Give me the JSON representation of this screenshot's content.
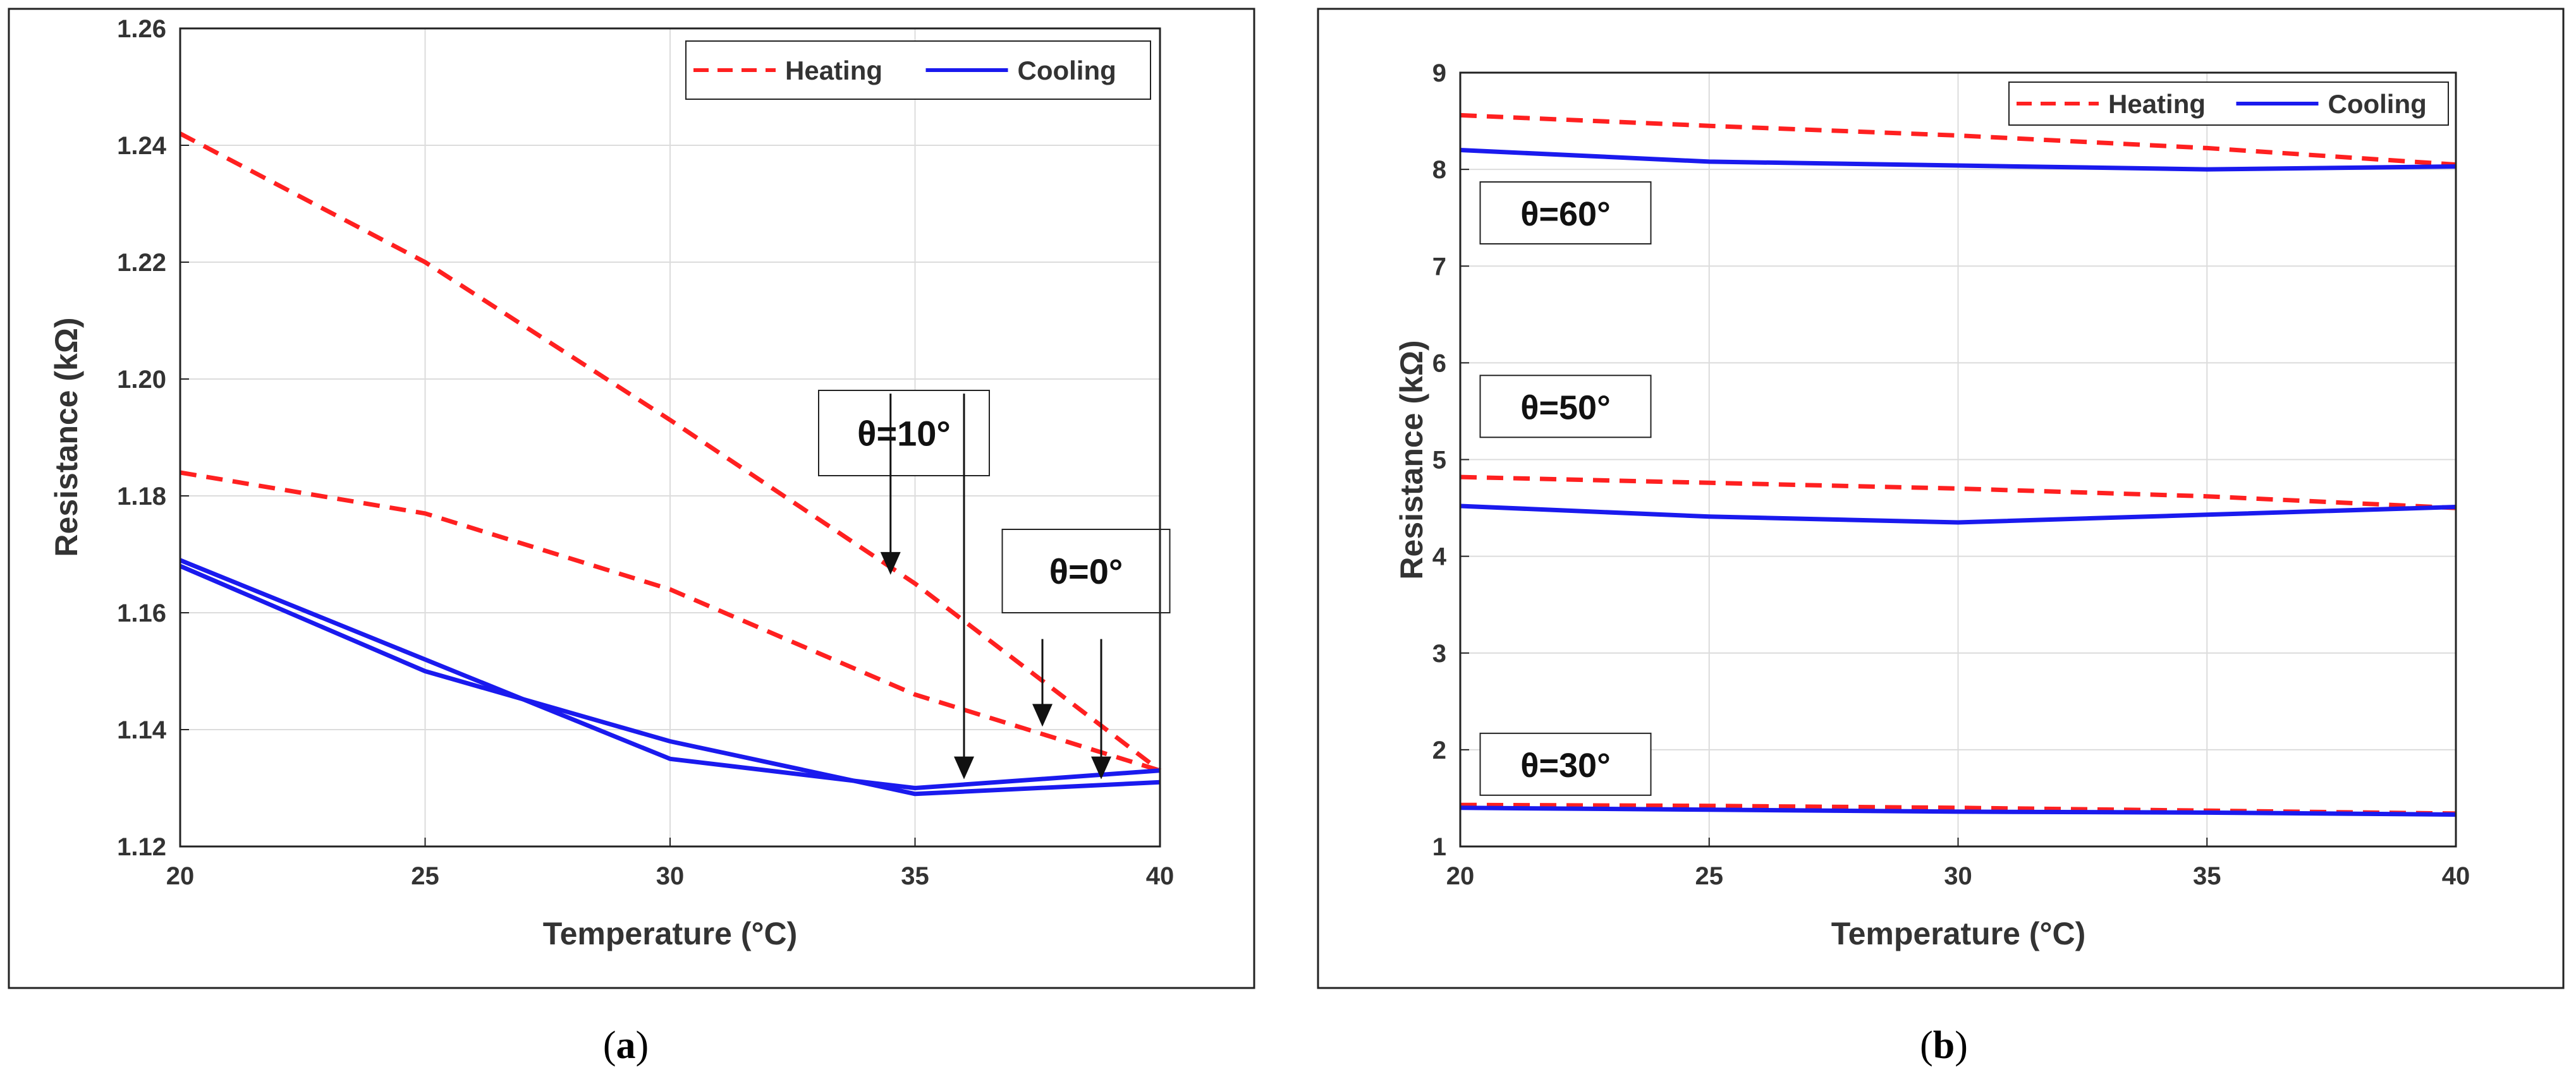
{
  "chart_data": [
    {
      "type": "line",
      "panel_label": "a",
      "xlabel": "Temperature (°C)",
      "ylabel": "Resistance (kΩ)",
      "xlim": [
        20,
        40
      ],
      "ylim": [
        1.12,
        1.26
      ],
      "xticks": [
        20,
        25,
        30,
        35,
        40
      ],
      "xtick_labels": [
        "20",
        "25",
        "30",
        "35",
        "40"
      ],
      "yticks": [
        1.12,
        1.14,
        1.16,
        1.18,
        1.2,
        1.22,
        1.24,
        1.26
      ],
      "ytick_labels": [
        "1.12",
        "1.14",
        "1.16",
        "1.18",
        "1.20",
        "1.22",
        "1.24",
        "1.26"
      ],
      "grid": true,
      "legend": {
        "position": "top-right",
        "entries": [
          "Heating",
          "Cooling"
        ]
      },
      "x": [
        20,
        25,
        30,
        35,
        40
      ],
      "series": [
        {
          "name": "Heating",
          "label": "θ=10°",
          "style": "dashed",
          "color": "#ff2020",
          "values": [
            1.242,
            1.22,
            1.193,
            1.165,
            1.133
          ]
        },
        {
          "name": "Heating",
          "label": "θ=0°",
          "style": "dashed",
          "color": "#ff2020",
          "values": [
            1.184,
            1.177,
            1.164,
            1.146,
            1.133
          ]
        },
        {
          "name": "Cooling",
          "label": "θ=10°",
          "style": "solid",
          "color": "#1a1aee",
          "values": [
            1.169,
            1.152,
            1.135,
            1.13,
            1.133
          ]
        },
        {
          "name": "Cooling",
          "label": "θ=0°",
          "style": "solid",
          "color": "#1a1aee",
          "values": [
            1.168,
            1.15,
            1.138,
            1.129,
            1.131
          ]
        }
      ],
      "annotations": [
        {
          "text": "θ=10°",
          "arrows": [
            {
              "x": 34.5,
              "y_from": 1.1975,
              "y_to": 1.1665
            },
            {
              "x": 36.0,
              "y_from": 1.1975,
              "y_to": 1.1315
            }
          ]
        },
        {
          "text": "θ=0°",
          "arrows": [
            {
              "x": 37.6,
              "y_from": 1.1555,
              "y_to": 1.1405
            },
            {
              "x": 38.8,
              "y_from": 1.1555,
              "y_to": 1.1315
            }
          ]
        }
      ]
    },
    {
      "type": "line",
      "panel_label": "b",
      "xlabel": "Temperature (°C)",
      "ylabel": "Resistance (kΩ)",
      "xlim": [
        20,
        40
      ],
      "ylim": [
        1,
        9
      ],
      "xticks": [
        20,
        25,
        30,
        35,
        40
      ],
      "xtick_labels": [
        "20",
        "25",
        "30",
        "35",
        "40"
      ],
      "yticks": [
        1,
        2,
        3,
        4,
        5,
        6,
        7,
        8,
        9
      ],
      "ytick_labels": [
        "1",
        "2",
        "3",
        "4",
        "5",
        "6",
        "7",
        "8",
        "9"
      ],
      "grid": true,
      "legend": {
        "position": "top-right",
        "entries": [
          "Heating",
          "Cooling"
        ]
      },
      "x": [
        20,
        25,
        30,
        35,
        40
      ],
      "series": [
        {
          "name": "Heating",
          "label": "θ=60°",
          "style": "dashed",
          "color": "#ff2020",
          "values": [
            8.56,
            8.45,
            8.35,
            8.22,
            8.05
          ]
        },
        {
          "name": "Cooling",
          "label": "θ=60°",
          "style": "solid",
          "color": "#1a1aee",
          "values": [
            8.2,
            8.08,
            8.04,
            8.0,
            8.03
          ]
        },
        {
          "name": "Heating",
          "label": "θ=50°",
          "style": "dashed",
          "color": "#ff2020",
          "values": [
            4.82,
            4.76,
            4.7,
            4.62,
            4.5
          ]
        },
        {
          "name": "Cooling",
          "label": "θ=50°",
          "style": "solid",
          "color": "#1a1aee",
          "values": [
            4.52,
            4.41,
            4.35,
            4.43,
            4.51
          ]
        },
        {
          "name": "Heating",
          "label": "θ=30°",
          "style": "dashed",
          "color": "#ff2020",
          "values": [
            1.43,
            1.42,
            1.4,
            1.37,
            1.34
          ]
        },
        {
          "name": "Cooling",
          "label": "θ=30°",
          "style": "solid",
          "color": "#1a1aee",
          "values": [
            1.4,
            1.38,
            1.36,
            1.35,
            1.33
          ]
        }
      ],
      "annotations": [
        {
          "text": "θ=60°",
          "x": 20.4,
          "y": 7.55
        },
        {
          "text": "θ=50°",
          "x": 20.4,
          "y": 5.55
        },
        {
          "text": "θ=30°",
          "x": 20.4,
          "y": 1.85
        }
      ]
    }
  ],
  "captions": {
    "a": "a",
    "b": "b"
  }
}
